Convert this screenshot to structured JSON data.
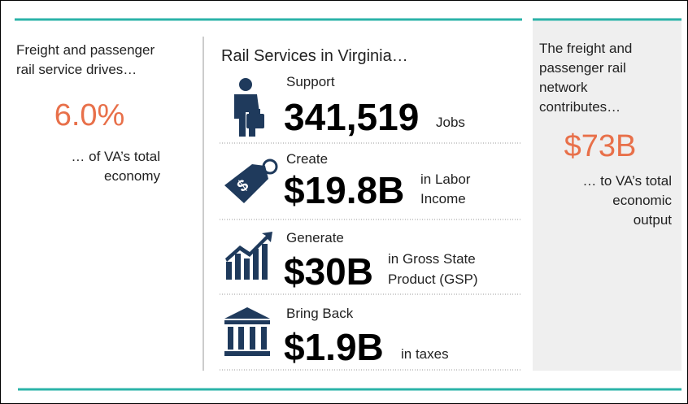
{
  "left": {
    "intro": [
      "Freight and passenger",
      "rail service drives…"
    ],
    "stat": "6.0%",
    "outro": [
      "… of VA’s total",
      "economy"
    ]
  },
  "middle": {
    "heading": "Rail Services in Virginia…",
    "rows": [
      {
        "verb": "Support",
        "figure": "341,519",
        "unit": [
          "Jobs"
        ]
      },
      {
        "verb": "Create",
        "figure": "$19.8B",
        "unit": [
          "in Labor",
          "Income"
        ]
      },
      {
        "verb": "Generate",
        "figure": "$30B",
        "unit": [
          "in Gross State",
          "Product (GSP)"
        ]
      },
      {
        "verb": "Bring Back",
        "figure": "$1.9B",
        "unit": [
          "in taxes"
        ]
      }
    ]
  },
  "right": {
    "intro": [
      "The freight and",
      "passenger rail",
      "network",
      "contributes…"
    ],
    "stat": "$73B",
    "outro": [
      "… to VA’s total",
      "economic",
      "output"
    ]
  }
}
